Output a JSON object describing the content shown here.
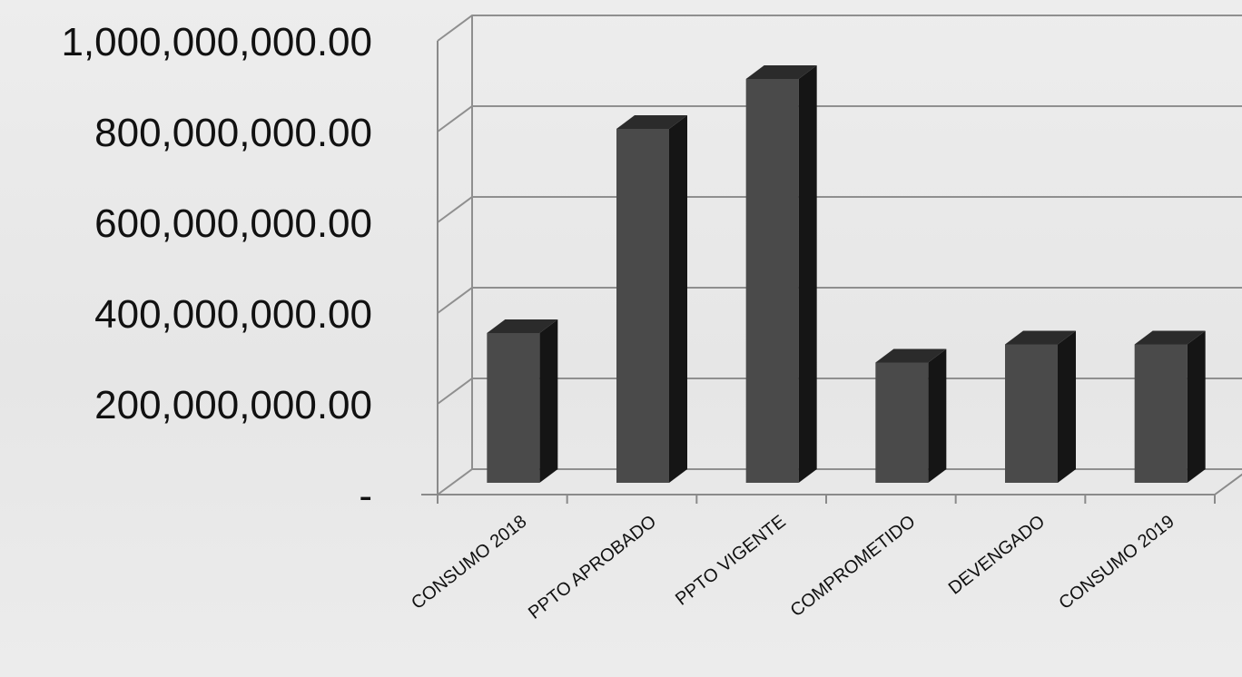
{
  "chart_data": {
    "type": "bar",
    "title": "",
    "xlabel": "",
    "ylabel": "",
    "categories": [
      "CONSUMO 2018",
      "PPTO APROBADO",
      "PPTO VIGENTE",
      "COMPROMETIDO",
      "DEVENGADO",
      "CONSUMO 2019"
    ],
    "values": [
      330000000,
      780000000,
      890000000,
      265000000,
      305000000,
      305000000
    ],
    "ylim": [
      0,
      1000000000
    ],
    "y_ticks": [
      0,
      200000000,
      400000000,
      600000000,
      800000000,
      1000000000
    ],
    "y_tick_labels": [
      "-",
      "200,000,000.00",
      "400,000,000.00",
      "600,000,000.00",
      "800,000,000.00",
      "1,000,000,000.00"
    ],
    "grid": true,
    "three_d": true,
    "legend": "none",
    "colors": {
      "bar_front": "#4a4a4a",
      "bar_side": "#151515",
      "bar_top": "#2b2b2b",
      "grid": "#8f8f8f"
    }
  }
}
